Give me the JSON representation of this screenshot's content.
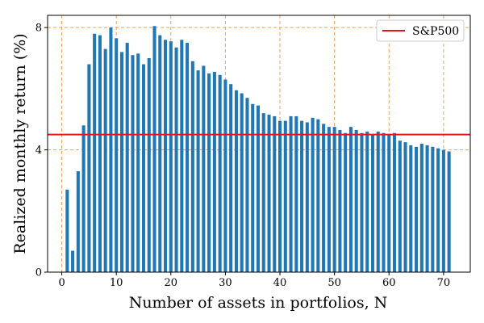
{
  "chart_data": {
    "type": "bar",
    "xlabel": "Number of assets in portfolios, N",
    "ylabel": "Realized monthly return (%)",
    "xlim": [
      -2.6,
      74.9
    ],
    "ylim": [
      0,
      8.4
    ],
    "x_ticks": [
      0,
      10,
      20,
      30,
      40,
      50,
      60,
      70
    ],
    "y_ticks": [
      0,
      4,
      8
    ],
    "grid": "dashed, orange, at major ticks",
    "legend_position": "top-right",
    "series": [
      {
        "color": "#1f77b4",
        "x": [
          1,
          2,
          3,
          4,
          5,
          6,
          7,
          8,
          9,
          10,
          11,
          12,
          13,
          14,
          15,
          16,
          17,
          18,
          19,
          20,
          21,
          22,
          23,
          24,
          25,
          26,
          27,
          28,
          29,
          30,
          31,
          32,
          33,
          34,
          35,
          36,
          37,
          38,
          39,
          40,
          41,
          42,
          43,
          44,
          45,
          46,
          47,
          48,
          49,
          50,
          51,
          52,
          53,
          54,
          55,
          56,
          57,
          58,
          59,
          60,
          61,
          62,
          63,
          64,
          65,
          66,
          67,
          68,
          69,
          70,
          71
        ],
        "values": [
          2.7,
          0.7,
          3.3,
          4.8,
          6.8,
          7.8,
          7.75,
          7.3,
          8.0,
          7.65,
          7.2,
          7.5,
          7.1,
          7.15,
          6.8,
          7.0,
          8.05,
          7.75,
          7.6,
          7.55,
          7.35,
          7.6,
          7.5,
          6.9,
          6.6,
          6.75,
          6.5,
          6.55,
          6.45,
          6.3,
          6.15,
          5.95,
          5.85,
          5.7,
          5.5,
          5.45,
          5.2,
          5.15,
          5.1,
          4.95,
          4.95,
          5.1,
          5.1,
          4.95,
          4.9,
          5.05,
          5.0,
          4.85,
          4.75,
          4.75,
          4.65,
          4.55,
          4.75,
          4.65,
          4.55,
          4.6,
          4.5,
          4.6,
          4.55,
          4.5,
          4.55,
          4.3,
          4.25,
          4.15,
          4.1,
          4.2,
          4.15,
          4.1,
          4.05,
          4.0,
          3.95
        ]
      }
    ],
    "reference_line": {
      "name": "S&P500",
      "value": 4.5,
      "color": "#e8141c"
    }
  }
}
